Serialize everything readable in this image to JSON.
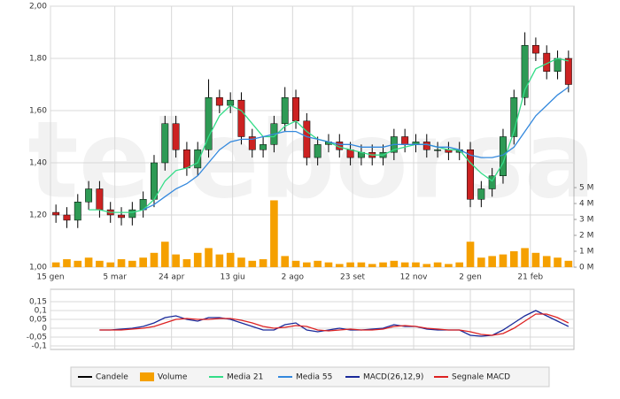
{
  "chart_data": [
    {
      "type": "candlestick",
      "watermark": "teleborsa",
      "ohlc": {
        "name": "Candele",
        "color": "#000000",
        "up_color": "#2e9a55",
        "down_color": "#cc2222",
        "open": [
          1.21,
          1.2,
          1.18,
          1.25,
          1.3,
          1.22,
          1.2,
          1.19,
          1.22,
          1.26,
          1.4,
          1.55,
          1.45,
          1.38,
          1.45,
          1.65,
          1.62,
          1.64,
          1.5,
          1.45,
          1.47,
          1.55,
          1.65,
          1.56,
          1.42,
          1.47,
          1.48,
          1.45,
          1.42,
          1.44,
          1.42,
          1.44,
          1.5,
          1.47,
          1.48,
          1.45,
          1.45,
          1.44,
          1.45,
          1.26,
          1.3,
          1.35,
          1.5,
          1.65,
          1.85,
          1.82,
          1.75,
          1.8
        ],
        "high": [
          1.24,
          1.23,
          1.28,
          1.33,
          1.33,
          1.25,
          1.23,
          1.25,
          1.29,
          1.43,
          1.58,
          1.58,
          1.48,
          1.48,
          1.72,
          1.68,
          1.67,
          1.67,
          1.53,
          1.5,
          1.58,
          1.69,
          1.68,
          1.59,
          1.5,
          1.51,
          1.51,
          1.48,
          1.47,
          1.47,
          1.47,
          1.53,
          1.53,
          1.51,
          1.51,
          1.48,
          1.48,
          1.48,
          1.48,
          1.33,
          1.38,
          1.53,
          1.68,
          1.9,
          1.88,
          1.85,
          1.83,
          1.83
        ],
        "low": [
          1.17,
          1.15,
          1.15,
          1.22,
          1.19,
          1.17,
          1.16,
          1.16,
          1.19,
          1.23,
          1.37,
          1.42,
          1.35,
          1.35,
          1.42,
          1.59,
          1.59,
          1.47,
          1.42,
          1.42,
          1.44,
          1.52,
          1.53,
          1.39,
          1.39,
          1.44,
          1.42,
          1.39,
          1.39,
          1.39,
          1.39,
          1.41,
          1.44,
          1.44,
          1.42,
          1.42,
          1.41,
          1.41,
          1.23,
          1.23,
          1.27,
          1.32,
          1.47,
          1.62,
          1.79,
          1.72,
          1.72,
          1.67
        ],
        "close": [
          1.2,
          1.18,
          1.25,
          1.3,
          1.22,
          1.2,
          1.19,
          1.22,
          1.26,
          1.4,
          1.55,
          1.45,
          1.38,
          1.45,
          1.65,
          1.62,
          1.64,
          1.5,
          1.45,
          1.47,
          1.55,
          1.65,
          1.56,
          1.42,
          1.47,
          1.48,
          1.45,
          1.42,
          1.44,
          1.42,
          1.44,
          1.5,
          1.47,
          1.48,
          1.45,
          1.45,
          1.44,
          1.45,
          1.26,
          1.3,
          1.35,
          1.5,
          1.65,
          1.85,
          1.82,
          1.75,
          1.8,
          1.7
        ]
      },
      "series": [
        {
          "name": "Volume",
          "type": "bar",
          "axis": "y2",
          "color": "#f5a000",
          "values": [
            0.3,
            0.5,
            0.4,
            0.6,
            0.4,
            0.3,
            0.5,
            0.4,
            0.6,
            0.9,
            1.6,
            0.8,
            0.5,
            0.9,
            1.2,
            0.8,
            0.9,
            0.6,
            0.4,
            0.5,
            4.2,
            0.7,
            0.4,
            0.3,
            0.4,
            0.3,
            0.2,
            0.3,
            0.3,
            0.2,
            0.3,
            0.4,
            0.3,
            0.3,
            0.2,
            0.3,
            0.2,
            0.3,
            1.6,
            0.6,
            0.7,
            0.8,
            1.0,
            1.2,
            0.9,
            0.7,
            0.6,
            0.4
          ]
        },
        {
          "name": "Media 21",
          "type": "line",
          "color": "#33dd88",
          "values": [
            null,
            null,
            null,
            1.22,
            1.22,
            1.21,
            1.21,
            1.21,
            1.22,
            1.26,
            1.33,
            1.37,
            1.38,
            1.4,
            1.5,
            1.58,
            1.62,
            1.6,
            1.55,
            1.5,
            1.5,
            1.54,
            1.56,
            1.52,
            1.49,
            1.48,
            1.46,
            1.45,
            1.44,
            1.43,
            1.43,
            1.45,
            1.46,
            1.47,
            1.47,
            1.46,
            1.45,
            1.45,
            1.4,
            1.36,
            1.33,
            1.4,
            1.52,
            1.68,
            1.76,
            1.78,
            1.8,
            1.79
          ]
        },
        {
          "name": "Media 55",
          "type": "line",
          "color": "#3388dd",
          "values": [
            null,
            null,
            null,
            null,
            null,
            null,
            null,
            null,
            1.22,
            1.24,
            1.27,
            1.3,
            1.32,
            1.35,
            1.4,
            1.45,
            1.48,
            1.49,
            1.49,
            1.5,
            1.51,
            1.52,
            1.52,
            1.5,
            1.49,
            1.48,
            1.47,
            1.47,
            1.46,
            1.46,
            1.46,
            1.47,
            1.47,
            1.47,
            1.47,
            1.46,
            1.46,
            1.45,
            1.43,
            1.42,
            1.42,
            1.43,
            1.46,
            1.52,
            1.58,
            1.62,
            1.66,
            1.69
          ]
        }
      ],
      "xlim": [
        0,
        48
      ],
      "xticks": [
        {
          "value": 0,
          "label": "15 gen"
        },
        {
          "value": 5.9,
          "label": "5 mar"
        },
        {
          "value": 11.1,
          "label": "24 apr"
        },
        {
          "value": 16.7,
          "label": "13 giu"
        },
        {
          "value": 22.2,
          "label": "2 ago"
        },
        {
          "value": 27.7,
          "label": "23 set"
        },
        {
          "value": 33.3,
          "label": "12 nov"
        },
        {
          "value": 38.5,
          "label": "2 gen"
        },
        {
          "value": 44.0,
          "label": "21 feb"
        }
      ],
      "ylim": [
        1,
        2
      ],
      "yticks": [
        {
          "value": 1,
          "label": "1,00"
        },
        {
          "value": 1.2,
          "label": "1,20"
        },
        {
          "value": 1.4,
          "label": "1,40"
        },
        {
          "value": 1.6,
          "label": "1,60"
        },
        {
          "value": 1.8,
          "label": "1,80"
        },
        {
          "value": 2,
          "label": "2,00"
        }
      ],
      "y2lim": [
        0,
        16.4
      ],
      "y2ticks": [
        {
          "value": 0,
          "label": "0 M"
        },
        {
          "value": 1,
          "label": "1 M"
        },
        {
          "value": 2,
          "label": "2 M"
        },
        {
          "value": 3,
          "label": "3 M"
        },
        {
          "value": 4,
          "label": "4 M"
        },
        {
          "value": 5,
          "label": "5 M"
        }
      ],
      "grid": true
    },
    {
      "type": "line",
      "series": [
        {
          "name": "MACD(26,12,9)",
          "color": "#1a2a9a",
          "values": [
            null,
            null,
            null,
            null,
            -0.01,
            -0.01,
            -0.005,
            0,
            0.01,
            0.03,
            0.06,
            0.07,
            0.05,
            0.04,
            0.06,
            0.06,
            0.05,
            0.03,
            0.01,
            -0.01,
            -0.01,
            0.02,
            0.03,
            -0.01,
            -0.02,
            -0.01,
            0,
            -0.01,
            -0.01,
            -0.005,
            0,
            0.02,
            0.01,
            0.01,
            -0.005,
            -0.01,
            -0.01,
            -0.01,
            -0.04,
            -0.045,
            -0.04,
            -0.01,
            0.03,
            0.07,
            0.1,
            0.07,
            0.04,
            0.01
          ]
        },
        {
          "name": "Segnale MACD",
          "color": "#dd2222",
          "values": [
            null,
            null,
            null,
            null,
            -0.01,
            -0.01,
            -0.01,
            -0.005,
            0,
            0.01,
            0.03,
            0.05,
            0.055,
            0.05,
            0.05,
            0.055,
            0.055,
            0.045,
            0.03,
            0.01,
            0,
            0.005,
            0.015,
            0.01,
            -0.01,
            -0.015,
            -0.01,
            -0.005,
            -0.01,
            -0.01,
            -0.005,
            0.01,
            0.015,
            0.01,
            0,
            -0.005,
            -0.01,
            -0.01,
            -0.02,
            -0.035,
            -0.04,
            -0.03,
            0,
            0.04,
            0.08,
            0.08,
            0.06,
            0.03
          ]
        }
      ],
      "xlim": [
        0,
        48
      ],
      "ylim": [
        -0.12,
        0.22
      ],
      "yticks": [
        {
          "value": 0.15,
          "label": "0,15"
        },
        {
          "value": 0.1,
          "label": "0,1"
        },
        {
          "value": 0.05,
          "label": "0,05"
        },
        0,
        {
          "value": -0.05,
          "label": "-0,05"
        },
        {
          "value": -0.1,
          "label": "-0,1"
        }
      ],
      "grid": true
    }
  ]
}
